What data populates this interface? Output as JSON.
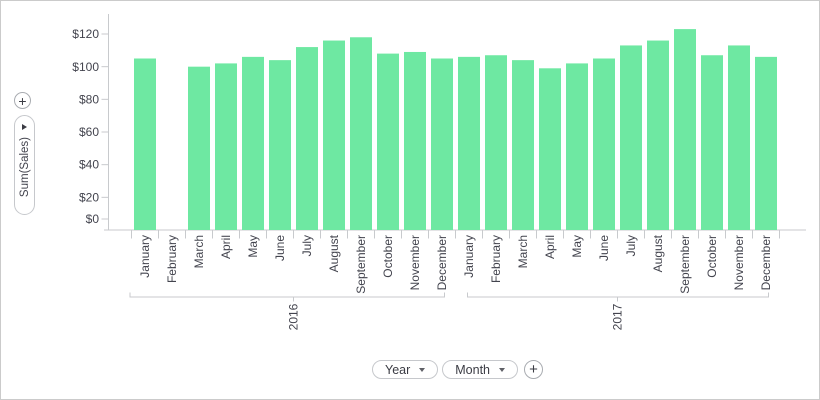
{
  "window": {
    "background": "#ffffff",
    "border_color": "#cbcbcb"
  },
  "left_controls": {
    "add_measure_button": {
      "label": "+",
      "icon": "plus-icon"
    },
    "measure_pill": {
      "label": "Sum(Sales)",
      "icon": "caret-right-icon"
    }
  },
  "bottom_controls": {
    "year_button": {
      "label": "Year",
      "icon": "caret-down-icon"
    },
    "month_button": {
      "label": "Month",
      "icon": "caret-down-icon"
    },
    "add_dimension_button": {
      "label": "+",
      "icon": "plus-icon"
    }
  },
  "chart_data": {
    "type": "bar",
    "title": "",
    "xlabel": "",
    "ylabel": "Sum(Sales)",
    "bar_color": "#6ee8a2",
    "axis_color": "#c8cacd",
    "text_color": "#43444e",
    "grid": "off",
    "legend": "none",
    "y_axis": {
      "tick_values": [
        0,
        20,
        40,
        60,
        80,
        100,
        120
      ],
      "tick_labels": [
        "$0",
        "$20",
        "$40",
        "$60",
        "$80",
        "$100",
        "$120"
      ],
      "range": [
        0,
        132
      ],
      "format": "currency-USD"
    },
    "note": "February 2016 has no bar (missing value)",
    "groups": [
      {
        "label": "2016",
        "categories": [
          "January",
          "February",
          "March",
          "April",
          "May",
          "June",
          "July",
          "August",
          "September",
          "October",
          "November",
          "December"
        ],
        "values": [
          105,
          null,
          100,
          102,
          106,
          104,
          112,
          116,
          118,
          108,
          109,
          105
        ]
      },
      {
        "label": "2017",
        "categories": [
          "January",
          "February",
          "March",
          "April",
          "May",
          "June",
          "July",
          "August",
          "September",
          "October",
          "November",
          "December"
        ],
        "values": [
          106,
          107,
          104,
          99,
          102,
          105,
          113,
          116,
          123,
          107,
          113,
          106
        ]
      }
    ]
  }
}
